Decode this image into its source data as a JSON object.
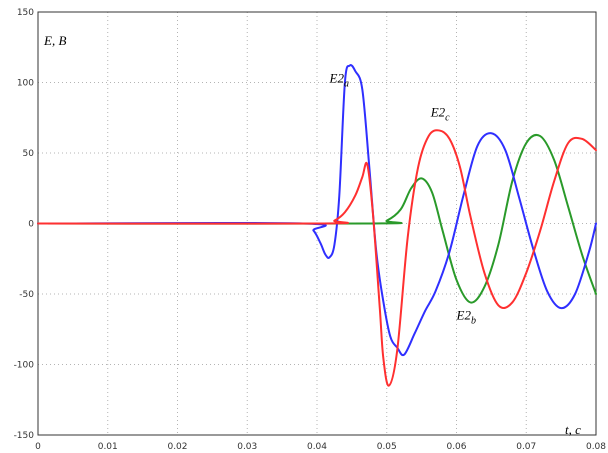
{
  "chart_data": {
    "type": "line",
    "xlabel": "t, c",
    "ylabel": "E, B",
    "xlim": [
      0,
      0.08
    ],
    "ylim": [
      -150,
      150
    ],
    "grid": true,
    "x_ticks": [
      "0",
      "0.01",
      "0.02",
      "0.03",
      "0.04",
      "0.05",
      "0.06",
      "0.07",
      "0.08"
    ],
    "y_ticks": [
      "150",
      "100",
      "50",
      "0",
      "-50",
      "-100",
      "-150"
    ],
    "annotations": [
      {
        "base": "E2",
        "sub": "a",
        "x": 0.0418,
        "y": 100,
        "series": "E2a"
      },
      {
        "base": "E2",
        "sub": "c",
        "x": 0.0563,
        "y": 76,
        "series": "E2c"
      },
      {
        "base": "E2",
        "sub": "b",
        "x": 0.06,
        "y": -68,
        "series": "E2b"
      }
    ],
    "series": [
      {
        "name": "E2a",
        "color": "#2f2fff",
        "x": [
          0,
          0.038,
          0.0395,
          0.0405,
          0.0412,
          0.0418,
          0.0425,
          0.0432,
          0.044,
          0.0447,
          0.0455,
          0.0465,
          0.0475,
          0.0485,
          0.0495,
          0.0505,
          0.0515,
          0.0525,
          0.054,
          0.0555,
          0.057,
          0.059,
          0.061,
          0.063,
          0.065,
          0.067,
          0.069,
          0.071,
          0.073,
          0.075,
          0.077,
          0.079,
          0.08
        ],
        "y": [
          0,
          0,
          -5,
          -14,
          -22,
          -24,
          -15,
          20,
          100,
          112,
          108,
          95,
          40,
          -20,
          -55,
          -80,
          -88,
          -93,
          -78,
          -62,
          -48,
          -20,
          20,
          55,
          64,
          52,
          18,
          -18,
          -48,
          -60,
          -50,
          -20,
          0
        ]
      },
      {
        "name": "E2c",
        "color": "#ff3030",
        "x": [
          0,
          0.041,
          0.0425,
          0.044,
          0.0455,
          0.0465,
          0.0472,
          0.048,
          0.049,
          0.0495,
          0.0503,
          0.0515,
          0.053,
          0.0545,
          0.056,
          0.0575,
          0.059,
          0.0605,
          0.062,
          0.064,
          0.066,
          0.068,
          0.07,
          0.072,
          0.074,
          0.076,
          0.078,
          0.08
        ],
        "y": [
          0,
          0,
          2,
          8,
          20,
          33,
          42,
          8,
          -60,
          -95,
          -115,
          -90,
          -10,
          40,
          62,
          66,
          60,
          40,
          5,
          -35,
          -58,
          -56,
          -35,
          -5,
          30,
          57,
          60,
          52
        ]
      },
      {
        "name": "E2b",
        "color": "#2a9a2a",
        "x": [
          0,
          0.048,
          0.05,
          0.052,
          0.0535,
          0.055,
          0.0565,
          0.058,
          0.06,
          0.062,
          0.064,
          0.066,
          0.068,
          0.07,
          0.072,
          0.074,
          0.076,
          0.078,
          0.08
        ],
        "y": [
          0,
          0,
          2,
          10,
          25,
          32,
          22,
          -5,
          -40,
          -56,
          -45,
          -15,
          30,
          57,
          62,
          45,
          12,
          -22,
          -50
        ]
      }
    ]
  }
}
